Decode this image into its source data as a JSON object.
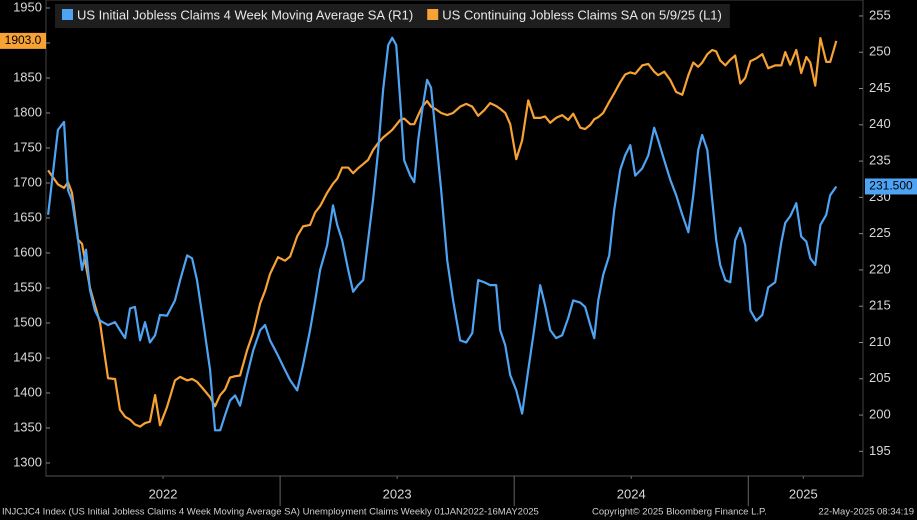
{
  "chart_data": {
    "type": "line",
    "legend": "top-left",
    "grid": false,
    "xlim": [
      2022,
      2025.49
    ],
    "xticks": [
      {
        "value": 2022.5,
        "label": "2022"
      },
      {
        "value": 2023.5,
        "label": "2023"
      },
      {
        "value": 2024.5,
        "label": "2024"
      },
      {
        "value": 2025.235,
        "label": "2025"
      }
    ],
    "xminorticks": [
      2023,
      2024,
      2025
    ],
    "ylim": [
      1281.4,
      1961.4
    ],
    "yticks": [
      1300,
      1350,
      1400,
      1450,
      1500,
      1550,
      1600,
      1650,
      1700,
      1750,
      1800,
      1850,
      1900,
      1950
    ],
    "y2lim": [
      191.6,
      257.2
    ],
    "y2ticks": [
      195,
      200,
      205,
      210,
      215,
      220,
      225,
      230,
      235,
      240,
      245,
      250,
      255
    ],
    "x": [
      2022.009,
      2022.051,
      2022.077,
      2022.094,
      2022.111,
      2022.137,
      2022.154,
      2022.171,
      2022.188,
      2022.209,
      2022.231,
      2022.265,
      2022.295,
      2022.316,
      2022.338,
      2022.359,
      2022.38,
      2022.402,
      2022.423,
      2022.444,
      2022.466,
      2022.487,
      2022.517,
      2022.551,
      2022.573,
      2022.603,
      2022.624,
      2022.645,
      2022.671,
      2022.701,
      2022.722,
      2022.744,
      2022.765,
      2022.786,
      2022.808,
      2022.829,
      2022.859,
      2022.885,
      2022.915,
      2022.936,
      2022.957,
      2022.991,
      2023.021,
      2023.043,
      2023.073,
      2023.098,
      2023.128,
      2023.15,
      2023.171,
      2023.201,
      2023.226,
      2023.244,
      2023.265,
      2023.291,
      2023.312,
      2023.333,
      2023.355,
      2023.376,
      2023.397,
      2023.419,
      2023.44,
      2023.462,
      2023.479,
      2023.496,
      2023.513,
      2023.53,
      2023.556,
      2023.573,
      2023.59,
      2023.607,
      2023.628,
      2023.645,
      2023.667,
      2023.688,
      2023.714,
      2023.739,
      2023.769,
      2023.795,
      2023.821,
      2023.846,
      2023.872,
      2023.897,
      2023.923,
      2023.94,
      2023.962,
      2023.983,
      2024.009,
      2024.034,
      2024.06,
      2024.085,
      2024.111,
      2024.132,
      2024.154,
      2024.179,
      2024.205,
      2024.231,
      2024.252,
      2024.282,
      2024.303,
      2024.325,
      2024.342,
      2024.359,
      2024.38,
      2024.406,
      2024.427,
      2024.453,
      2024.474,
      2024.496,
      2024.517,
      2024.547,
      2024.573,
      2024.598,
      2024.615,
      2024.641,
      2024.667,
      2024.692,
      2024.718,
      2024.744,
      2024.765,
      2024.786,
      2024.803,
      2024.825,
      2024.846,
      2024.863,
      2024.88,
      2024.902,
      2024.923,
      2024.944,
      2024.966,
      2024.987,
      2025.009,
      2025.034,
      2025.06,
      2025.085,
      2025.115,
      2025.141,
      2025.158,
      2025.179,
      2025.205,
      2025.226,
      2025.248,
      2025.265,
      2025.286,
      2025.308,
      2025.333,
      2025.35,
      2025.376
    ],
    "series": [
      {
        "name": "US Initial Jobless Claims 4 Week Moving Average SA  (R1)",
        "color": "#4ea3f2",
        "axis": "y2",
        "last_label": "231.500",
        "values": [
          227.6,
          239.3,
          240.4,
          231,
          229.6,
          224.1,
          220,
          222.8,
          217.2,
          214.4,
          213,
          212.4,
          212.8,
          211.7,
          210.6,
          214.7,
          214.9,
          210.3,
          212.8,
          210,
          211,
          213.8,
          213.7,
          215.8,
          218.6,
          222,
          221.6,
          218.6,
          213,
          206.2,
          197.9,
          197.9,
          200,
          202,
          202.7,
          201.3,
          205.5,
          208.9,
          211.7,
          212.4,
          210.3,
          208.2,
          206.2,
          204.8,
          203.4,
          206.9,
          211.7,
          215.8,
          220,
          223.4,
          228.9,
          226.2,
          224.1,
          220,
          217,
          217.9,
          218.6,
          224.1,
          229.6,
          236.5,
          244.8,
          251,
          252,
          251,
          243.4,
          235.1,
          233,
          232.1,
          237.9,
          242,
          246.2,
          245.1,
          237.9,
          231,
          221.3,
          215.8,
          210.3,
          210,
          211.3,
          218.6,
          218.3,
          217.9,
          217.9,
          211.7,
          209.6,
          205.5,
          203.4,
          200.2,
          206.2,
          211.7,
          217.9,
          215.1,
          211.7,
          210.6,
          211,
          213.4,
          215.8,
          215.5,
          214.9,
          212.4,
          210.6,
          215.8,
          219.3,
          222,
          228.2,
          233.8,
          235.8,
          237.2,
          233,
          234,
          235.8,
          239.6,
          237.9,
          235.1,
          232.4,
          230.3,
          227.6,
          225.2,
          230.3,
          236.5,
          238.6,
          236.5,
          229.6,
          224.1,
          220.7,
          218.6,
          218.3,
          224.1,
          225.8,
          223.4,
          214.4,
          213,
          213.8,
          217.6,
          218.3,
          223.8,
          226.5,
          227.4,
          229.2,
          224.6,
          223.9,
          221.6,
          220.7,
          226.2,
          227.6,
          230.3,
          231.5
        ]
      },
      {
        "name": "US Continuing Jobless Claims SA  on 5/9/25  (L1)",
        "color": "#f7a235",
        "axis": "y",
        "last_label": "1903.0",
        "values": [
          1718,
          1698,
          1693,
          1701,
          1686,
          1619,
          1613,
          1581,
          1550,
          1525,
          1500,
          1421,
          1420,
          1376,
          1366,
          1362,
          1355,
          1352,
          1357,
          1359,
          1397,
          1354,
          1380,
          1418,
          1423,
          1418,
          1420,
          1416,
          1406,
          1394,
          1381,
          1397,
          1405,
          1422,
          1424,
          1425,
          1461,
          1486,
          1528,
          1546,
          1570,
          1594,
          1589,
          1595,
          1624,
          1638,
          1640,
          1658,
          1667,
          1686,
          1699,
          1706,
          1722,
          1722,
          1714,
          1721,
          1727,
          1733,
          1747,
          1757,
          1765,
          1771,
          1776,
          1783,
          1790,
          1792,
          1784,
          1784,
          1797,
          1809,
          1817,
          1809,
          1805,
          1800,
          1797,
          1800,
          1809,
          1813,
          1809,
          1796,
          1804,
          1814,
          1810,
          1806,
          1800,
          1784,
          1734,
          1761,
          1818,
          1793,
          1793,
          1795,
          1786,
          1793,
          1797,
          1790,
          1799,
          1779,
          1777,
          1783,
          1791,
          1794,
          1800,
          1816,
          1828,
          1844,
          1855,
          1858,
          1856,
          1868,
          1870,
          1859,
          1854,
          1859,
          1847,
          1830,
          1826,
          1854,
          1872,
          1866,
          1872,
          1884,
          1890,
          1888,
          1875,
          1868,
          1876,
          1882,
          1842,
          1850,
          1874,
          1878,
          1884,
          1864,
          1868,
          1868,
          1887,
          1869,
          1890,
          1857,
          1880,
          1872,
          1839,
          1907,
          1873,
          1873,
          1903
        ]
      }
    ],
    "footer": {
      "source": "INJCJC4 Index (US Initial Jobless Claims 4 Week Moving Average SA) Unemployment Claims  Weekly 01JAN2022-16MAY2025",
      "copyright": "Copyright© 2025 Bloomberg Finance L.P.",
      "timestamp": "22-May-2025 08:34:19"
    }
  }
}
